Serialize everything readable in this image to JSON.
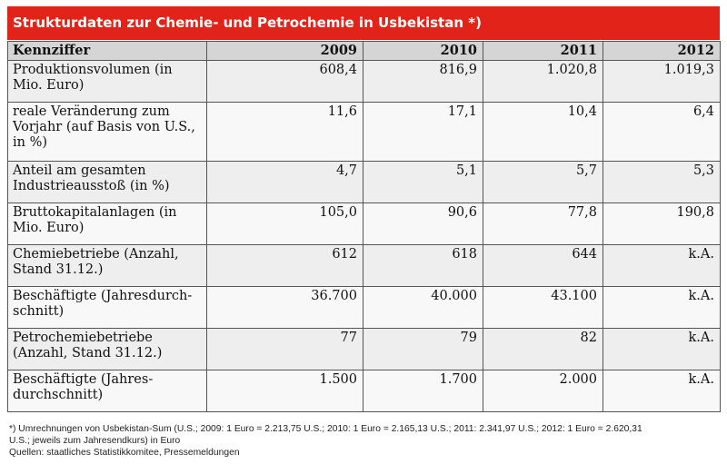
{
  "title": "Strukturdaten zur Chemie- und Petrochemie in Usbekistan *)",
  "table": {
    "headers": [
      "Kennziffer",
      "2009",
      "2010",
      "2011",
      "2012"
    ],
    "rows": [
      {
        "label": "Produktionsvolumen (in Mio. Euro)",
        "values": [
          "608,4",
          "816,9",
          "1.020,8",
          "1.019,3"
        ]
      },
      {
        "label": "reale Veränderung zum Vorjahr (auf Basis von U.S., in %)",
        "values": [
          "11,6",
          "17,1",
          "10,4",
          "6,4"
        ]
      },
      {
        "label": "Anteil am gesamten Industrieausstoß (in %)",
        "values": [
          "4,7",
          "5,1",
          "5,7",
          "5,3"
        ]
      },
      {
        "label": "Bruttokapitalanlagen (in Mio. Euro)",
        "values": [
          "105,0",
          "90,6",
          "77,8",
          "190,8"
        ]
      },
      {
        "label": "Chemiebetriebe (Anzahl, Stand 31.12.)",
        "values": [
          "612",
          "618",
          "644",
          "k.A."
        ]
      },
      {
        "label": "Beschäftigte (Jahresdurch-schnitt)",
        "values": [
          "36.700",
          "40.000",
          "43.100",
          "k.A."
        ]
      },
      {
        "label": "Petrochemiebetriebe (Anzahl, Stand 31.12.)",
        "values": [
          "77",
          "79",
          "82",
          "k.A."
        ]
      },
      {
        "label": "Beschäftigte (Jahres-durchschnitt)",
        "values": [
          "1.500",
          "1.700",
          "2.000",
          "k.A."
        ]
      }
    ]
  },
  "footnote": {
    "line1": "*) Umrechnungen von Usbekistan-Sum (U.S.; 2009: 1 Euro = 2.213,75 U.S.; 2010: 1 Euro = 2.165,13 U.S.; 2011: 2.341,97 U.S.; 2012: 1 Euro = 2.620,31",
    "line2": "U.S.; jeweils zum Jahresendkurs) in Euro",
    "line3": "Quellen: staatliches Statistikkomitee, Pressemeldungen"
  }
}
